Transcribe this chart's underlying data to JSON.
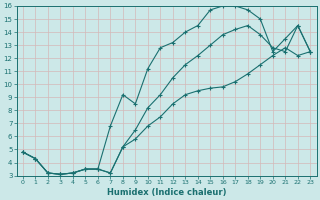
{
  "xlabel": "Humidex (Indice chaleur)",
  "bg_color": "#cce8e8",
  "grid_color": "#aad4d4",
  "line_color": "#1a7070",
  "marker": "+",
  "xlim": [
    -0.5,
    23.5
  ],
  "ylim": [
    3,
    16
  ],
  "xticks": [
    0,
    1,
    2,
    3,
    4,
    5,
    6,
    7,
    8,
    9,
    10,
    11,
    12,
    13,
    14,
    15,
    16,
    17,
    18,
    19,
    20,
    21,
    22,
    23
  ],
  "yticks": [
    3,
    4,
    5,
    6,
    7,
    8,
    9,
    10,
    11,
    12,
    13,
    14,
    15,
    16
  ],
  "line1_x": [
    0,
    1,
    2,
    3,
    4,
    5,
    6,
    7,
    8,
    9,
    10,
    11,
    12,
    13,
    14,
    15,
    16,
    17,
    18,
    19,
    20,
    21,
    22,
    23
  ],
  "line1_y": [
    4.8,
    4.3,
    3.2,
    3.1,
    3.2,
    3.5,
    3.5,
    3.2,
    5.2,
    6.5,
    8.2,
    9.2,
    10.5,
    11.5,
    12.2,
    13.0,
    13.8,
    14.2,
    14.5,
    13.8,
    12.8,
    12.5,
    14.5,
    12.5
  ],
  "line2_x": [
    0,
    1,
    2,
    3,
    4,
    5,
    6,
    7,
    8,
    9,
    10,
    11,
    12,
    13,
    14,
    15,
    16,
    17,
    18,
    19,
    20,
    21,
    22,
    23
  ],
  "line2_y": [
    4.8,
    4.3,
    3.2,
    3.1,
    3.2,
    3.5,
    3.5,
    6.8,
    9.2,
    8.5,
    11.2,
    12.8,
    13.2,
    14.0,
    14.5,
    15.7,
    16.0,
    16.0,
    15.7,
    15.0,
    12.5,
    13.5,
    14.5,
    12.5
  ],
  "line3_x": [
    0,
    1,
    2,
    3,
    4,
    5,
    6,
    7,
    8,
    9,
    10,
    11,
    12,
    13,
    14,
    15,
    16,
    17,
    18,
    19,
    20,
    21,
    22,
    23
  ],
  "line3_y": [
    4.8,
    4.3,
    3.2,
    3.1,
    3.2,
    3.5,
    3.5,
    3.2,
    5.2,
    5.8,
    6.8,
    7.5,
    8.5,
    9.2,
    9.5,
    9.7,
    9.8,
    10.2,
    10.8,
    11.5,
    12.2,
    12.8,
    12.2,
    12.5
  ]
}
